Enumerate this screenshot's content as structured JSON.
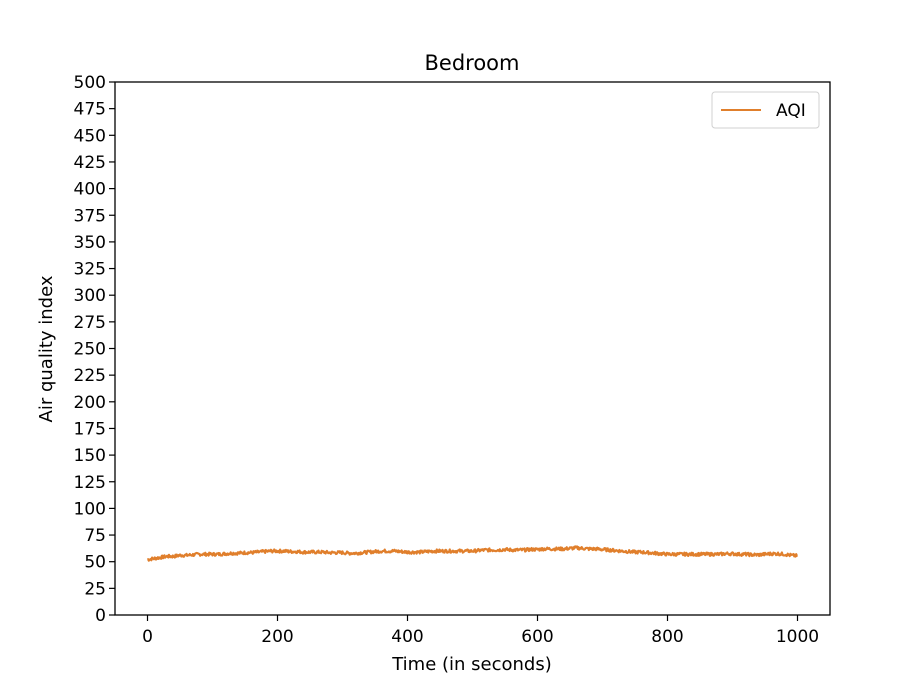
{
  "chart_data": {
    "type": "line",
    "title": "Bedroom",
    "xlabel": "Time (in seconds)",
    "ylabel": "Air quality index",
    "xlim": [
      -50,
      1050
    ],
    "ylim": [
      0,
      500
    ],
    "x_ticks": [
      0,
      200,
      400,
      600,
      800,
      1000
    ],
    "y_ticks": [
      0,
      25,
      50,
      75,
      100,
      125,
      150,
      175,
      200,
      225,
      250,
      275,
      300,
      325,
      350,
      375,
      400,
      425,
      450,
      475,
      500
    ],
    "grid": false,
    "legend_position": "top-right",
    "series": [
      {
        "name": "AQI",
        "color": "#e07f2c",
        "x": [
          0,
          10,
          20,
          30,
          40,
          50,
          60,
          70,
          80,
          90,
          100,
          110,
          120,
          130,
          140,
          150,
          160,
          170,
          180,
          190,
          200,
          210,
          220,
          230,
          240,
          250,
          260,
          270,
          280,
          290,
          300,
          310,
          320,
          330,
          340,
          350,
          360,
          370,
          380,
          390,
          400,
          410,
          420,
          430,
          440,
          450,
          460,
          470,
          480,
          490,
          500,
          510,
          520,
          530,
          540,
          550,
          560,
          570,
          580,
          590,
          600,
          610,
          620,
          630,
          640,
          650,
          660,
          670,
          680,
          690,
          700,
          710,
          720,
          730,
          740,
          750,
          760,
          770,
          780,
          790,
          800,
          810,
          820,
          830,
          840,
          850,
          860,
          870,
          880,
          890,
          900,
          910,
          920,
          930,
          940,
          950,
          960,
          970,
          980,
          990,
          1000
        ],
        "y": [
          52,
          53,
          54,
          55,
          55,
          56,
          56,
          56.5,
          57,
          57,
          57,
          57,
          57.5,
          58,
          58,
          58.5,
          58.5,
          59,
          59.5,
          60,
          60,
          60,
          59.5,
          59.5,
          59,
          59,
          59,
          59,
          58.5,
          58.5,
          58.5,
          58,
          58,
          58.5,
          59,
          59.5,
          60,
          60,
          60,
          59.5,
          59,
          59,
          59,
          59.5,
          60,
          60,
          60,
          60,
          60,
          60,
          60,
          60.5,
          61,
          61,
          61,
          61.5,
          61,
          61,
          61,
          61.5,
          61.5,
          62,
          62,
          62,
          62,
          62.5,
          63,
          62.5,
          62,
          62,
          61.5,
          61,
          60.5,
          60,
          59.5,
          59,
          59,
          58.5,
          58,
          57.5,
          57,
          57,
          57,
          57,
          57,
          57,
          57,
          57,
          57,
          57.5,
          57.5,
          57,
          57,
          56.5,
          56.5,
          57,
          57.5,
          57.5,
          57,
          56,
          55.5
        ]
      }
    ]
  }
}
